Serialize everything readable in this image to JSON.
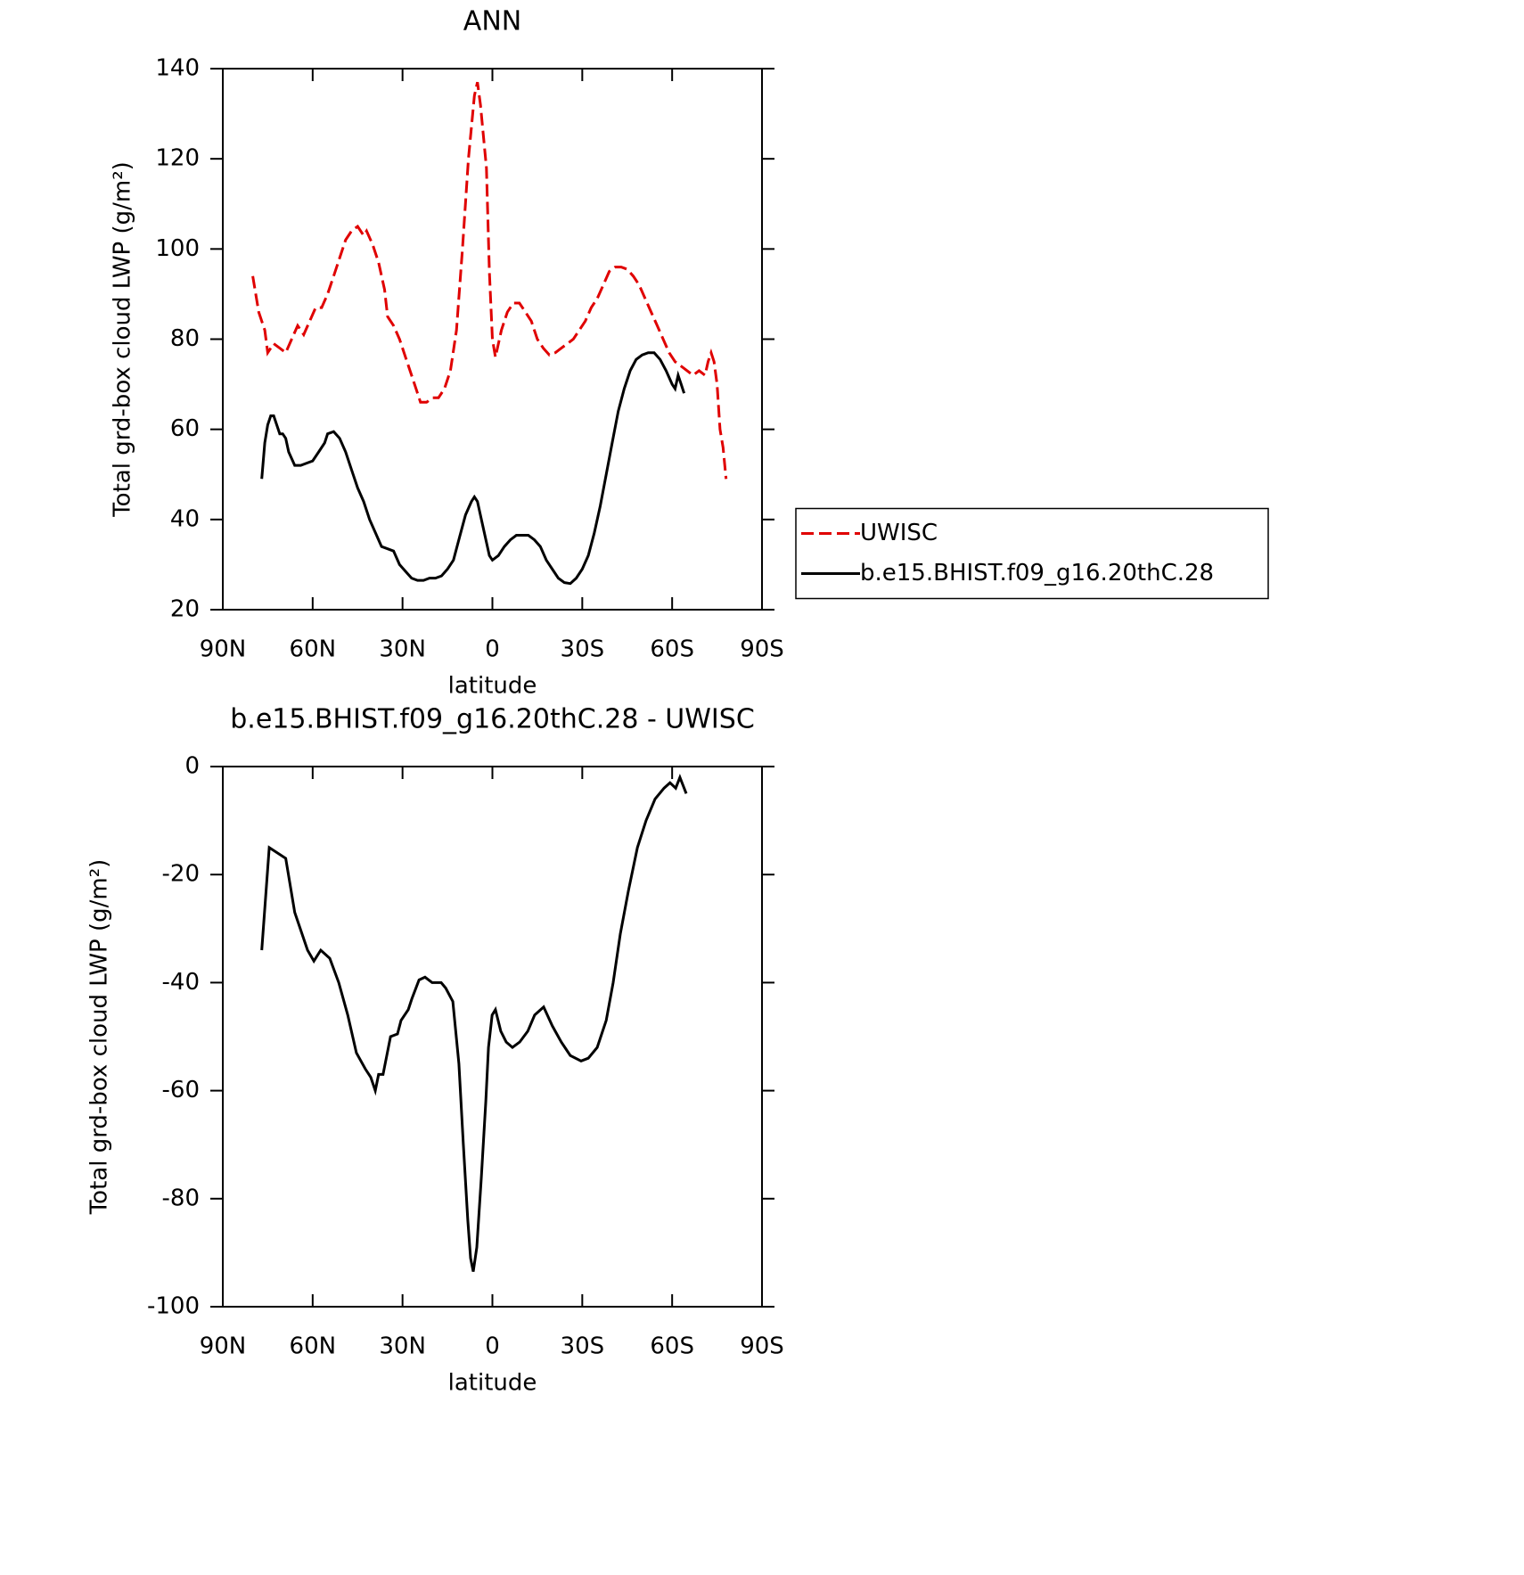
{
  "chart_data": [
    {
      "type": "line",
      "title": "ANN",
      "xlabel": "latitude",
      "ylabel": "Total grd-box cloud LWP (g/m²)",
      "xlim": [
        90,
        -90
      ],
      "xticks": [
        {
          "value": 90,
          "label": "90N"
        },
        {
          "value": 60,
          "label": "60N"
        },
        {
          "value": 30,
          "label": "30N"
        },
        0,
        {
          "value": -30,
          "label": "30S"
        },
        {
          "value": -60,
          "label": "60S"
        },
        {
          "value": -90,
          "label": "90S"
        }
      ],
      "ylim": [
        20,
        140
      ],
      "yticks": [
        20,
        40,
        60,
        80,
        100,
        120,
        140
      ],
      "legend": "right",
      "series": [
        {
          "name": "UWISC",
          "color": "#e00000",
          "dash": true,
          "x": [
            80,
            78,
            76,
            75,
            73,
            71,
            69,
            67,
            65,
            63,
            61,
            59,
            57,
            55,
            53,
            51,
            49,
            47,
            45,
            43,
            42,
            40,
            38,
            36,
            35,
            33,
            31,
            29,
            27,
            25,
            24,
            22,
            20,
            18,
            16,
            14,
            12,
            10,
            8,
            6,
            5,
            4,
            2,
            1,
            0,
            -1,
            -3,
            -5,
            -7,
            -9,
            -11,
            -13,
            -15,
            -17,
            -19,
            -21,
            -23,
            -25,
            -27,
            -29,
            -31,
            -33,
            -35,
            -37,
            -39,
            -41,
            -43,
            -45,
            -47,
            -49,
            -51,
            -53,
            -55,
            -57,
            -59,
            -61,
            -63,
            -65,
            -67,
            -69,
            -71,
            -72,
            -73,
            -74,
            -75,
            -76,
            -77,
            -78
          ],
          "values": [
            94,
            86,
            82,
            77,
            79,
            78,
            77,
            80,
            83,
            81,
            84,
            87,
            87,
            90,
            94,
            98,
            102,
            104,
            105,
            103,
            104,
            101,
            97,
            91,
            85,
            83,
            80,
            76,
            72,
            68,
            66,
            66,
            67,
            67,
            69,
            73,
            82,
            100,
            120,
            134,
            137,
            132,
            118,
            95,
            80,
            76,
            82,
            86,
            88,
            88,
            86,
            84,
            80,
            78,
            76.5,
            77,
            78,
            79,
            80,
            82,
            84,
            87,
            89,
            92,
            95,
            96,
            96,
            95.5,
            94,
            92,
            89,
            86,
            83,
            80,
            77,
            75,
            74,
            73,
            72,
            73,
            72,
            75,
            77,
            75,
            70,
            60,
            56,
            49
          ]
        },
        {
          "name": "b.e15.BHIST.f09_g16.20thC.28",
          "color": "#000000",
          "dash": false,
          "x": [
            77,
            76,
            75,
            74,
            73,
            72,
            71,
            70,
            69,
            68,
            66,
            65,
            64,
            62,
            60,
            58,
            56,
            55,
            53,
            51,
            49,
            47,
            45,
            43,
            41,
            39,
            37,
            35,
            33,
            31,
            29,
            27,
            25,
            23,
            21,
            19,
            17,
            15,
            13,
            11,
            9,
            7,
            6,
            5,
            3,
            1,
            0,
            -2,
            -4,
            -6,
            -8,
            -10,
            -12,
            -14,
            -16,
            -18,
            -20,
            -22,
            -24,
            -26,
            -28,
            -30,
            -32,
            -34,
            -36,
            -38,
            -40,
            -42,
            -44,
            -46,
            -48,
            -50,
            -52,
            -54,
            -56,
            -58,
            -60,
            -61,
            -62,
            -63,
            -64
          ],
          "values": [
            49,
            57,
            61,
            63,
            63,
            61,
            59,
            59,
            58,
            55,
            52,
            52,
            52,
            52.5,
            53,
            55,
            57,
            59,
            59.5,
            58,
            55,
            51,
            47,
            44,
            40,
            37,
            34,
            33.5,
            33,
            30,
            28.5,
            27,
            26.5,
            26.5,
            27,
            27,
            27.5,
            29,
            31,
            36,
            41,
            44,
            45,
            44,
            38,
            32,
            31,
            32,
            34,
            35.5,
            36.5,
            36.5,
            36.5,
            35.5,
            34,
            31,
            29,
            27,
            26,
            25.8,
            27,
            29,
            32,
            37,
            43,
            50,
            57,
            64,
            69,
            73,
            75.5,
            76.5,
            77,
            77,
            75.5,
            73,
            70,
            69,
            72,
            70,
            68
          ]
        }
      ]
    },
    {
      "type": "line",
      "title": "b.e15.BHIST.f09_g16.20thC.28 - UWISC",
      "xlabel": "latitude",
      "ylabel": "Total grd-box cloud LWP (g/m²)",
      "xlim": [
        90,
        -90
      ],
      "xticks": [
        {
          "value": 90,
          "label": "90N"
        },
        {
          "value": 60,
          "label": "60N"
        },
        {
          "value": 30,
          "label": "30N"
        },
        0,
        {
          "value": -30,
          "label": "30S"
        },
        {
          "value": -60,
          "label": "60S"
        },
        {
          "value": -90,
          "label": "90S"
        }
      ],
      "ylim": [
        -100,
        0
      ],
      "yticks": [
        -100,
        -80,
        -60,
        -40,
        -20,
        0
      ],
      "series": [
        {
          "color": "#000000",
          "dash": false,
          "x": [
            77,
            74.5,
            69,
            66,
            61.7,
            59.6,
            57.3,
            54.3,
            51.3,
            48.3,
            45.4,
            42.4,
            40.6,
            39.1,
            38,
            36.5,
            34,
            31.7,
            30.5,
            28.1,
            26.9,
            24.5,
            22.5,
            20.1,
            17.1,
            15.6,
            13.2,
            11.2,
            9.7,
            8.2,
            7.3,
            6.4,
            5.2,
            3.7,
            2.2,
            1.3,
            0.1,
            -1,
            -2.8,
            -4.6,
            -6.7,
            -9.1,
            -11.8,
            -14.1,
            -17.1,
            -20,
            -23,
            -26,
            -29.6,
            -32,
            -35,
            -38,
            -40.3,
            -42.7,
            -45.4,
            -48.4,
            -51.3,
            -54.3,
            -57.3,
            -59.3,
            -61.2,
            -62.6,
            -64.7
          ],
          "values": [
            -34,
            -15,
            -17,
            -27,
            -34,
            -36,
            -34,
            -35.5,
            -40,
            -46,
            -53,
            -56,
            -57.5,
            -60,
            -57,
            -57,
            -50,
            -49.5,
            -47,
            -45,
            -43,
            -39.5,
            -39,
            -40,
            -40,
            -41,
            -43.5,
            -55,
            -70,
            -84,
            -91,
            -93.5,
            -89,
            -76,
            -62,
            -52,
            -46,
            -45,
            -49,
            -51,
            -52,
            -51,
            -49,
            -46,
            -44.5,
            -48,
            -51,
            -53.5,
            -54.5,
            -54,
            -52,
            -47,
            -40,
            -31,
            -23,
            -15,
            -10,
            -6,
            -4,
            -3,
            -4,
            -2,
            -5
          ]
        }
      ]
    }
  ]
}
